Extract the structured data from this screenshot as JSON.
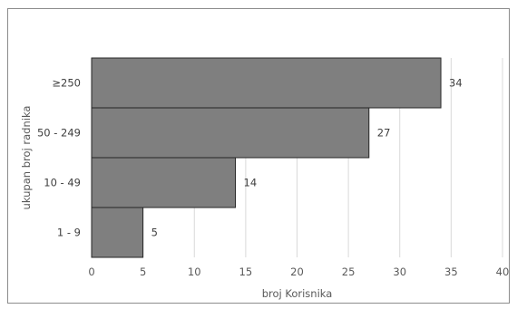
{
  "chart_data": {
    "type": "bar",
    "orientation": "horizontal",
    "categories": [
      "≥250",
      "50 - 249",
      "10 - 49",
      "1 - 9"
    ],
    "values": [
      34,
      27,
      14,
      5
    ],
    "data_labels": [
      "34",
      "27",
      "14",
      "5"
    ],
    "title": "",
    "xlabel": "broj Korisnika",
    "ylabel": "ukupan broj radnika",
    "xlim": [
      0,
      40
    ],
    "x_ticks": [
      0,
      5,
      10,
      15,
      20,
      25,
      30,
      35,
      40
    ],
    "grid": "vertical",
    "legend": "none",
    "colors": {
      "bar": "#7f7f7f",
      "bar_border": "#262626",
      "grid": "#d9d9d9"
    }
  }
}
